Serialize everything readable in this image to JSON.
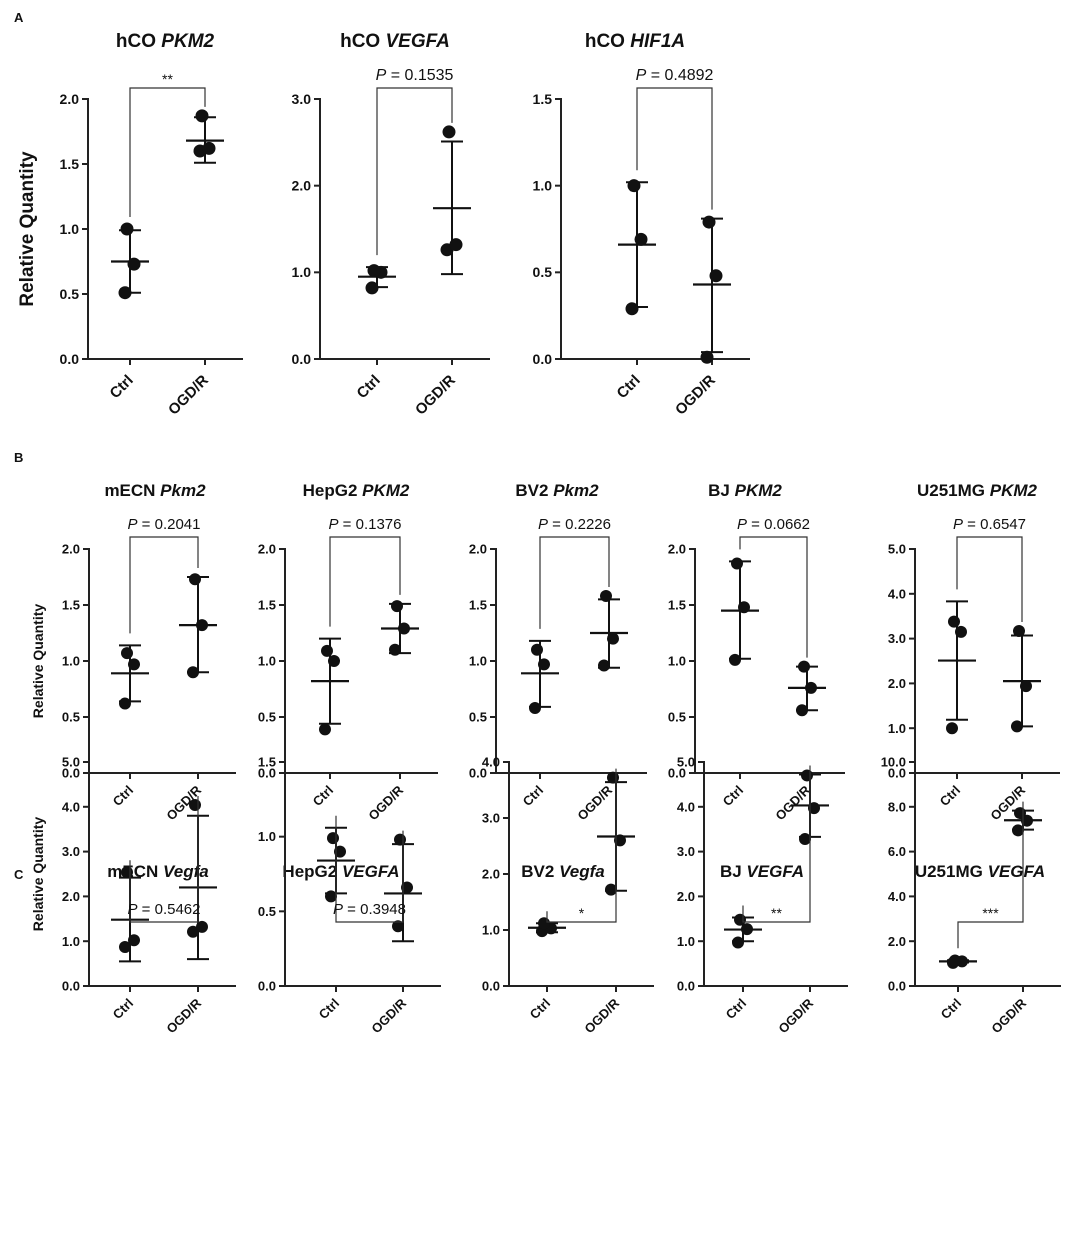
{
  "figure": {
    "panel_labels": [
      "A",
      "B",
      "C"
    ],
    "ylabel": "Relative Quantity",
    "x_categories": [
      "Ctrl",
      "OGD/R"
    ]
  },
  "chart_data": [
    {
      "panel": "A",
      "type": "scatter",
      "title_cell": "hCO",
      "title_gene": "PKM2",
      "ylabel": "Relative Quantity",
      "ylim": [
        0,
        2.0
      ],
      "yticks": [
        0,
        0.5,
        1.0,
        1.5,
        2.0
      ],
      "ytick_labels": [
        "0.0",
        "0.5",
        "1.0",
        "1.5",
        "2.0"
      ],
      "categories": [
        "Ctrl",
        "OGD/R"
      ],
      "series": [
        {
          "name": "Ctrl",
          "points": [
            0.51,
            0.73,
            1.0
          ],
          "mean": 0.75,
          "sd_low": 0.51,
          "sd_high": 0.99
        },
        {
          "name": "OGD/R",
          "points": [
            1.6,
            1.62,
            1.87
          ],
          "mean": 1.68,
          "sd_low": 1.51,
          "sd_high": 1.86
        }
      ],
      "annotation": {
        "prefix": "",
        "text": "**"
      }
    },
    {
      "panel": "A",
      "type": "scatter",
      "title_cell": "hCO",
      "title_gene": "VEGFA",
      "ylabel": "",
      "ylim": [
        0,
        3.0
      ],
      "yticks": [
        0,
        1.0,
        2.0,
        3.0
      ],
      "ytick_labels": [
        "0.0",
        "1.0",
        "2.0",
        "3.0"
      ],
      "categories": [
        "Ctrl",
        "OGD/R"
      ],
      "series": [
        {
          "name": "Ctrl",
          "points": [
            0.82,
            1.0,
            1.02
          ],
          "mean": 0.95,
          "sd_low": 0.83,
          "sd_high": 1.06
        },
        {
          "name": "OGD/R",
          "points": [
            1.26,
            1.32,
            2.62
          ],
          "mean": 1.74,
          "sd_low": 0.98,
          "sd_high": 2.51
        }
      ],
      "annotation": {
        "prefix": "P",
        "text": " = 0.1535"
      }
    },
    {
      "panel": "A",
      "type": "scatter",
      "title_cell": "hCO",
      "title_gene": "HIF1A",
      "ylabel": "",
      "ylim": [
        0,
        1.5
      ],
      "yticks": [
        0,
        0.5,
        1.0,
        1.5
      ],
      "ytick_labels": [
        "0.0",
        "0.5",
        "1.0",
        "1.5"
      ],
      "categories": [
        "Ctrl",
        "OGD/R"
      ],
      "series": [
        {
          "name": "Ctrl",
          "points": [
            0.29,
            0.69,
            1.0
          ],
          "mean": 0.66,
          "sd_low": 0.3,
          "sd_high": 1.02
        },
        {
          "name": "OGD/R",
          "points": [
            0.01,
            0.48,
            0.79
          ],
          "mean": 0.43,
          "sd_low": 0.04,
          "sd_high": 0.81
        }
      ],
      "annotation": {
        "prefix": "P",
        "text": " = 0.4892"
      }
    },
    {
      "panel": "B",
      "type": "scatter",
      "title_cell": "mECN",
      "title_gene": "Pkm2",
      "ylabel": "Relative Quantity",
      "ylim": [
        0,
        2.0
      ],
      "yticks": [
        0,
        0.5,
        1.0,
        1.5,
        2.0
      ],
      "ytick_labels": [
        "0.0",
        "0.5",
        "1.0",
        "1.5",
        "2.0"
      ],
      "categories": [
        "Ctrl",
        "OGD/R"
      ],
      "series": [
        {
          "name": "Ctrl",
          "points": [
            0.62,
            0.97,
            1.07
          ],
          "mean": 0.89,
          "sd_low": 0.64,
          "sd_high": 1.14
        },
        {
          "name": "OGD/R",
          "points": [
            0.9,
            1.32,
            1.73
          ],
          "mean": 1.32,
          "sd_low": 0.9,
          "sd_high": 1.75
        }
      ],
      "annotation": {
        "prefix": "P",
        "text": " = 0.2041"
      }
    },
    {
      "panel": "B",
      "type": "scatter",
      "title_cell": "HepG2",
      "title_gene": "PKM2",
      "ylabel": "",
      "ylim": [
        0,
        2.0
      ],
      "yticks": [
        0,
        0.5,
        1.0,
        1.5,
        2.0
      ],
      "ytick_labels": [
        "0.0",
        "0.5",
        "1.0",
        "1.5",
        "2.0"
      ],
      "categories": [
        "Ctrl",
        "OGD/R"
      ],
      "series": [
        {
          "name": "Ctrl",
          "points": [
            0.39,
            1.0,
            1.09
          ],
          "mean": 0.82,
          "sd_low": 0.44,
          "sd_high": 1.2
        },
        {
          "name": "OGD/R",
          "points": [
            1.1,
            1.29,
            1.49
          ],
          "mean": 1.29,
          "sd_low": 1.07,
          "sd_high": 1.51
        }
      ],
      "annotation": {
        "prefix": "P",
        "text": " = 0.1376"
      }
    },
    {
      "panel": "B",
      "type": "scatter",
      "title_cell": "BV2",
      "title_gene": "Pkm2",
      "ylabel": "",
      "ylim": [
        0,
        2.0
      ],
      "yticks": [
        0,
        0.5,
        1.0,
        1.5,
        2.0
      ],
      "ytick_labels": [
        "0.0",
        "0.5",
        "1.0",
        "1.5",
        "2.0"
      ],
      "categories": [
        "Ctrl",
        "OGD/R"
      ],
      "series": [
        {
          "name": "Ctrl",
          "points": [
            0.58,
            0.97,
            1.1
          ],
          "mean": 0.89,
          "sd_low": 0.59,
          "sd_high": 1.18
        },
        {
          "name": "OGD/R",
          "points": [
            0.96,
            1.2,
            1.58
          ],
          "mean": 1.25,
          "sd_low": 0.94,
          "sd_high": 1.55
        }
      ],
      "annotation": {
        "prefix": "P",
        "text": " = 0.2226"
      }
    },
    {
      "panel": "B",
      "type": "scatter",
      "title_cell": "BJ",
      "title_gene": "PKM2",
      "ylabel": "",
      "ylim": [
        0,
        2.0
      ],
      "yticks": [
        0,
        0.5,
        1.0,
        1.5,
        2.0
      ],
      "ytick_labels": [
        "0.0",
        "0.5",
        "1.0",
        "1.5",
        "2.0"
      ],
      "categories": [
        "Ctrl",
        "OGD/R"
      ],
      "series": [
        {
          "name": "Ctrl",
          "points": [
            1.01,
            1.48,
            1.87
          ],
          "mean": 1.45,
          "sd_low": 1.02,
          "sd_high": 1.89
        },
        {
          "name": "OGD/R",
          "points": [
            0.56,
            0.76,
            0.95
          ],
          "mean": 0.76,
          "sd_low": 0.56,
          "sd_high": 0.95
        }
      ],
      "annotation": {
        "prefix": "P",
        "text": " = 0.0662"
      }
    },
    {
      "panel": "B",
      "type": "scatter",
      "title_cell": "U251MG",
      "title_gene": "PKM2",
      "ylabel": "",
      "ylim": [
        0,
        5.0
      ],
      "yticks": [
        0,
        1.0,
        2.0,
        3.0,
        4.0,
        5.0
      ],
      "ytick_labels": [
        "0.0",
        "1.0",
        "2.0",
        "3.0",
        "4.0",
        "5.0"
      ],
      "categories": [
        "Ctrl",
        "OGD/R"
      ],
      "series": [
        {
          "name": "Ctrl",
          "points": [
            1.0,
            3.15,
            3.38
          ],
          "mean": 2.51,
          "sd_low": 1.19,
          "sd_high": 3.83
        },
        {
          "name": "OGD/R",
          "points": [
            1.04,
            1.94,
            3.17
          ],
          "mean": 2.05,
          "sd_low": 1.04,
          "sd_high": 3.07
        }
      ],
      "annotation": {
        "prefix": "P",
        "text": " = 0.6547"
      }
    },
    {
      "panel": "C",
      "type": "scatter",
      "title_cell": "mECN",
      "title_gene": "Vegfa",
      "ylabel": "Relative Quantity",
      "ylim": [
        0,
        5.0
      ],
      "yticks": [
        0,
        1.0,
        2.0,
        3.0,
        4.0,
        5.0
      ],
      "ytick_labels": [
        "0.0",
        "1.0",
        "2.0",
        "3.0",
        "4.0",
        "5.0"
      ],
      "categories": [
        "Ctrl",
        "OGD/R"
      ],
      "series": [
        {
          "name": "Ctrl",
          "points": [
            0.87,
            1.02,
            2.54
          ],
          "mean": 1.48,
          "sd_low": 0.55,
          "sd_high": 2.42
        },
        {
          "name": "OGD/R",
          "points": [
            1.21,
            1.32,
            4.04
          ],
          "mean": 2.2,
          "sd_low": 0.6,
          "sd_high": 3.8
        }
      ],
      "annotation": {
        "prefix": "P",
        "text": " = 0.5462"
      }
    },
    {
      "panel": "C",
      "type": "scatter",
      "title_cell": "HepG2",
      "title_gene": "VEGFA",
      "ylabel": "",
      "ylim": [
        0,
        1.5
      ],
      "yticks": [
        0,
        0.5,
        1.0,
        1.5
      ],
      "ytick_labels": [
        "0.0",
        "0.5",
        "1.0",
        "1.5"
      ],
      "categories": [
        "Ctrl",
        "OGD/R"
      ],
      "series": [
        {
          "name": "Ctrl",
          "points": [
            0.6,
            0.9,
            0.99
          ],
          "mean": 0.84,
          "sd_low": 0.62,
          "sd_high": 1.06
        },
        {
          "name": "OGD/R",
          "points": [
            0.4,
            0.66,
            0.98
          ],
          "mean": 0.62,
          "sd_low": 0.3,
          "sd_high": 0.95
        }
      ],
      "annotation": {
        "prefix": "P",
        "text": " = 0.3948"
      }
    },
    {
      "panel": "C",
      "type": "scatter",
      "title_cell": "BV2",
      "title_gene": "Vegfa",
      "ylabel": "",
      "ylim": [
        0,
        4.0
      ],
      "yticks": [
        0,
        1.0,
        2.0,
        3.0,
        4.0
      ],
      "ytick_labels": [
        "0.0",
        "1.0",
        "2.0",
        "3.0",
        "4.0"
      ],
      "categories": [
        "Ctrl",
        "OGD/R"
      ],
      "series": [
        {
          "name": "Ctrl",
          "points": [
            0.98,
            1.03,
            1.12
          ],
          "mean": 1.04,
          "sd_low": 0.96,
          "sd_high": 1.12
        },
        {
          "name": "OGD/R",
          "points": [
            1.72,
            2.6,
            3.72
          ],
          "mean": 2.67,
          "sd_low": 1.7,
          "sd_high": 3.64
        }
      ],
      "annotation": {
        "prefix": "",
        "text": "*"
      }
    },
    {
      "panel": "C",
      "type": "scatter",
      "title_cell": "BJ",
      "title_gene": "VEGFA",
      "ylabel": "",
      "ylim": [
        0,
        5.0
      ],
      "yticks": [
        0,
        1.0,
        2.0,
        3.0,
        4.0,
        5.0
      ],
      "ytick_labels": [
        "0.0",
        "1.0",
        "2.0",
        "3.0",
        "4.0",
        "5.0"
      ],
      "categories": [
        "Ctrl",
        "OGD/R"
      ],
      "series": [
        {
          "name": "Ctrl",
          "points": [
            0.97,
            1.27,
            1.48
          ],
          "mean": 1.26,
          "sd_low": 1.0,
          "sd_high": 1.53
        },
        {
          "name": "OGD/R",
          "points": [
            3.28,
            3.97,
            4.7
          ],
          "mean": 4.03,
          "sd_low": 3.33,
          "sd_high": 4.72
        }
      ],
      "annotation": {
        "prefix": "",
        "text": "**"
      }
    },
    {
      "panel": "C",
      "type": "scatter",
      "title_cell": "U251MG",
      "title_gene": "VEGFA",
      "ylabel": "",
      "ylim": [
        0,
        10.0
      ],
      "yticks": [
        0,
        2.0,
        4.0,
        6.0,
        8.0,
        10.0
      ],
      "ytick_labels": [
        "0.0",
        "2.0",
        "4.0",
        "6.0",
        "8.0",
        "10.0"
      ],
      "categories": [
        "Ctrl",
        "OGD/R"
      ],
      "series": [
        {
          "name": "Ctrl",
          "points": [
            1.03,
            1.1,
            1.14
          ],
          "mean": 1.1,
          "sd_low": 1.05,
          "sd_high": 1.15
        },
        {
          "name": "OGD/R",
          "points": [
            6.95,
            7.38,
            7.72
          ],
          "mean": 7.4,
          "sd_low": 6.98,
          "sd_high": 7.83
        }
      ],
      "annotation": {
        "prefix": "",
        "text": "***"
      }
    }
  ]
}
